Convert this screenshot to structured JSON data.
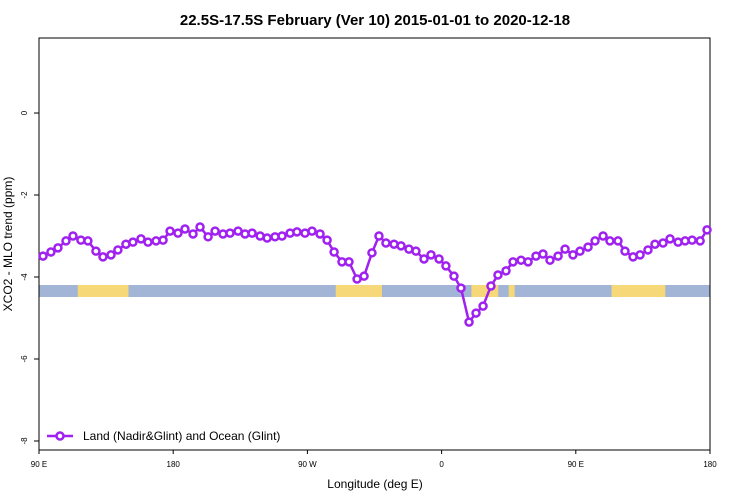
{
  "chart_data": {
    "type": "line",
    "title": "22.5S-17.5S February (Ver 10)   2015-01-01 to 2020-12-18",
    "x_label": "Longitude (deg E)",
    "y_label": "XCO2 - MLO trend (ppm)",
    "xlim": [
      90,
      540
    ],
    "xticks": [
      {
        "value": 90,
        "label": "90 E"
      },
      {
        "value": 180,
        "label": "180"
      },
      {
        "value": 270,
        "label": "90 W"
      },
      {
        "value": 360,
        "label": "0"
      },
      {
        "value": 450,
        "label": "90 E"
      },
      {
        "value": 540,
        "label": "180"
      }
    ],
    "ylim": [
      -8.22,
      1.83
    ],
    "yticks": [
      0,
      -2,
      -4,
      -6,
      -8
    ],
    "legend_position": "bottom-left",
    "x": [
      92.7,
      98.0,
      102.7,
      108.1,
      112.8,
      118.1,
      122.8,
      128.2,
      132.9,
      138.3,
      142.9,
      148.3,
      153.0,
      158.4,
      163.1,
      168.5,
      173.2,
      177.9,
      183.2,
      187.9,
      193.3,
      198.0,
      203.4,
      208.1,
      213.4,
      218.1,
      223.5,
      228.2,
      232.9,
      238.3,
      243.0,
      248.3,
      253.0,
      258.4,
      263.0,
      268.4,
      273.1,
      278.5,
      283.2,
      287.9,
      293.2,
      297.9,
      303.3,
      308.0,
      313.3,
      318.0,
      322.7,
      328.1,
      332.8,
      338.1,
      342.8,
      348.2,
      352.9,
      358.3,
      362.9,
      368.3,
      373.0,
      378.4,
      383.1,
      387.8,
      393.1,
      397.8,
      403.2,
      407.9,
      413.3,
      418.0,
      423.3,
      428.0,
      432.7,
      438.1,
      442.8,
      448.1,
      452.8,
      458.2,
      462.9,
      468.3,
      472.9,
      478.3,
      483.0,
      488.4,
      493.1,
      498.4,
      503.1,
      508.5,
      513.2,
      518.6,
      523.3,
      528.0,
      533.4,
      538.0
    ],
    "series": [
      {
        "name": "Land (Nadir&Glint) and Ocean (Glint)",
        "color": "#a020f0",
        "values": [
          -3.49,
          -3.39,
          -3.29,
          -3.12,
          -3.0,
          -3.1,
          -3.12,
          -3.37,
          -3.51,
          -3.46,
          -3.34,
          -3.2,
          -3.15,
          -3.07,
          -3.15,
          -3.12,
          -3.1,
          -2.88,
          -2.93,
          -2.83,
          -2.95,
          -2.78,
          -3.02,
          -2.88,
          -2.95,
          -2.93,
          -2.88,
          -2.95,
          -2.93,
          -3.0,
          -3.05,
          -3.02,
          -3.0,
          -2.93,
          -2.9,
          -2.93,
          -2.88,
          -2.95,
          -3.1,
          -3.39,
          -3.63,
          -3.63,
          -4.05,
          -3.98,
          -3.41,
          -3.0,
          -3.17,
          -3.2,
          -3.24,
          -3.32,
          -3.37,
          -3.56,
          -3.46,
          -3.56,
          -3.73,
          -3.98,
          -4.27,
          -5.1,
          -4.88,
          -4.71,
          -4.22,
          -3.95,
          -3.85,
          -3.63,
          -3.59,
          -3.63,
          -3.49,
          -3.44,
          -3.59,
          -3.49,
          -3.32,
          -3.46,
          -3.37,
          -3.27,
          -3.12,
          -3.0,
          -3.12,
          -3.12,
          -3.37,
          -3.51,
          -3.46,
          -3.34,
          -3.2,
          -3.17,
          -3.07,
          -3.15,
          -3.12,
          -3.1,
          -3.12,
          -2.85
        ]
      }
    ],
    "ocean_color": "#a2b5d6",
    "land_color": "#f7d878",
    "land_bands": [
      [
        116,
        150
      ],
      [
        289,
        320
      ],
      [
        380,
        398
      ],
      [
        405,
        409
      ],
      [
        474,
        510
      ]
    ]
  }
}
